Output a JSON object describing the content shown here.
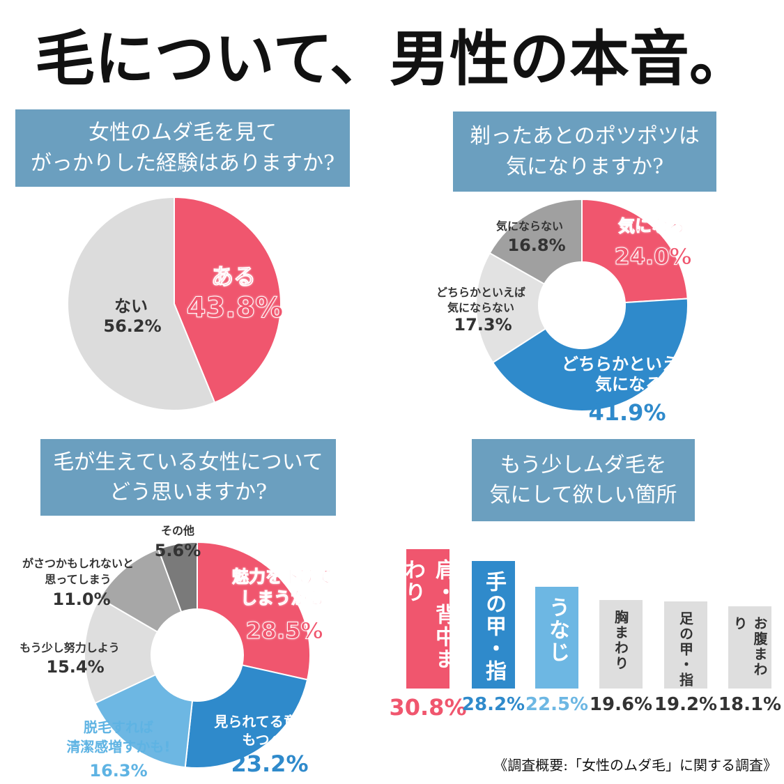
{
  "title": "毛について、男性の本音。",
  "colors": {
    "header_bg": "#6b9fbf",
    "red": "#f0566e",
    "blue": "#2f8acb",
    "light_blue": "#6db7e3",
    "light_gray": "#dedede",
    "mid_gray": "#a7a7a7",
    "dark_gray": "#7a7a7a"
  },
  "chart_data": [
    {
      "type": "pie",
      "title_lines": [
        "女性のムダ毛を見て",
        "がっかりした経験はありますか?"
      ],
      "slices": [
        {
          "label_lines": [
            "ある"
          ],
          "value": 43.8,
          "value_label": "43.8%",
          "color": "#f0566e"
        },
        {
          "label_lines": [
            "ない"
          ],
          "value": 56.2,
          "value_label": "56.2%",
          "color": "#dcdcdc"
        }
      ]
    },
    {
      "type": "pie",
      "donut": true,
      "title_lines": [
        "剃ったあとのポツポツは",
        "気になりますか?"
      ],
      "slices": [
        {
          "label_lines": [
            "気になる"
          ],
          "value": 24.0,
          "value_label": "24.0%",
          "color": "#f0566e"
        },
        {
          "label_lines": [
            "どちらかといえば",
            "気になる"
          ],
          "value": 41.9,
          "value_label": "41.9%",
          "color": "#2f8acb"
        },
        {
          "label_lines": [
            "どちらかといえば",
            "気にならない"
          ],
          "value": 17.3,
          "value_label": "17.3%",
          "color": "#e2e2e2"
        },
        {
          "label_lines": [
            "気にならない"
          ],
          "value": 16.8,
          "value_label": "16.8%",
          "color": "#a0a0a0"
        }
      ]
    },
    {
      "type": "pie",
      "donut": true,
      "title_lines": [
        "毛が生えている女性について",
        "どう思いますか?"
      ],
      "slices": [
        {
          "label_lines": [
            "魅力を下げて",
            "しまうかも"
          ],
          "value": 28.5,
          "value_label": "28.5%",
          "color": "#f0566e"
        },
        {
          "label_lines": [
            "見られてる意識を",
            "もつべき"
          ],
          "value": 23.2,
          "value_label": "23.2%",
          "color": "#2f8acb"
        },
        {
          "label_lines": [
            "脱毛すれば",
            "清潔感増すかも!"
          ],
          "value": 16.3,
          "value_label": "16.3%",
          "color": "#6db7e3"
        },
        {
          "label_lines": [
            "もう少し努力しよう"
          ],
          "value": 15.4,
          "value_label": "15.4%",
          "color": "#dedede"
        },
        {
          "label_lines": [
            "がさつかもしれないと",
            "思ってしまう"
          ],
          "value": 11.0,
          "value_label": "11.0%",
          "color": "#a7a7a7"
        },
        {
          "label_lines": [
            "その他"
          ],
          "value": 5.6,
          "value_label": "5.6%",
          "color": "#7a7a7a"
        }
      ]
    },
    {
      "type": "bar",
      "title_lines": [
        "もう少しムダ毛を",
        "気にして欲しい箇所"
      ],
      "categories": [
        "肩・背中まわり",
        "手の甲・指",
        "うなじ",
        "胸まわり",
        "足の甲・指",
        "お腹まわり"
      ],
      "values": [
        30.8,
        28.2,
        22.5,
        19.6,
        19.2,
        18.1
      ],
      "value_labels": [
        "30.8%",
        "28.2%",
        "22.5%",
        "19.6%",
        "19.2%",
        "18.1%"
      ],
      "colors": [
        "#f0566e",
        "#2f8acb",
        "#6db7e3",
        "#dedede",
        "#dedede",
        "#dedede"
      ],
      "label_colors": [
        "#f0566e",
        "#2f8acb",
        "#6db7e3",
        "#333333",
        "#333333",
        "#333333"
      ]
    }
  ],
  "footnote": "《調査概要:「女性のムダ毛」に関する調査》"
}
